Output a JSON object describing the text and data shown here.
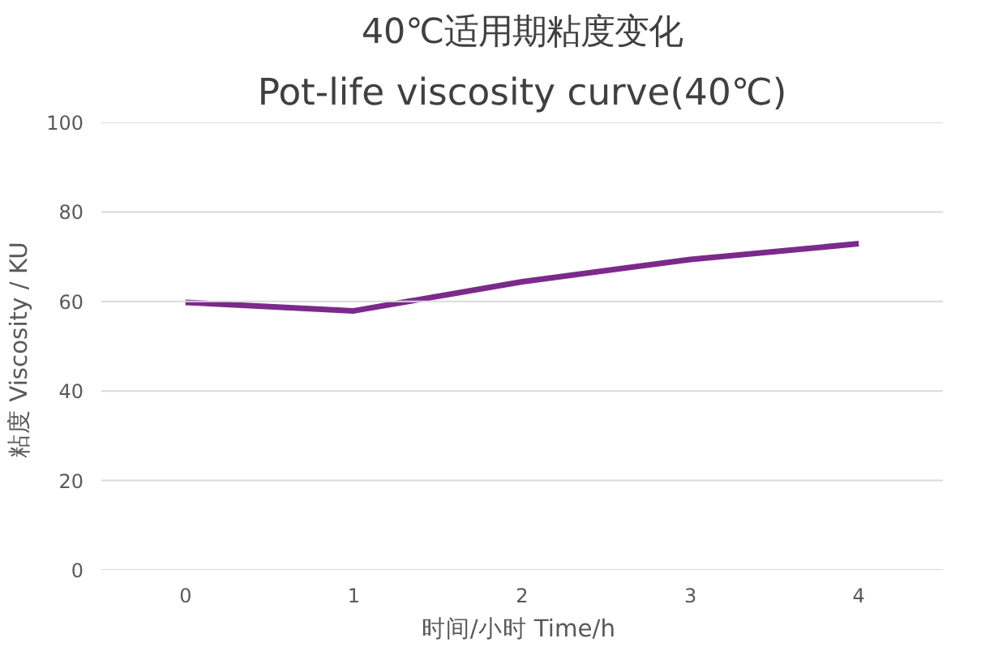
{
  "chart_data": {
    "type": "line",
    "title": "40℃适用期粘度变化",
    "subtitle": "Pot-life viscosity curve(40℃)",
    "xlabel": "时间/小时  Time/h",
    "ylabel": "粘度  Viscosity / KU",
    "categories": [
      "0",
      "1",
      "2",
      "3",
      "4"
    ],
    "series": [
      {
        "color": "#7b2a8b",
        "values": [
          59.8,
          57.9,
          64.4,
          69.4,
          72.9
        ]
      }
    ],
    "ylim": [
      0,
      100
    ],
    "yticks": [
      0,
      20,
      40,
      60,
      80,
      100
    ],
    "grid": "y",
    "marker": "none",
    "line_style": "solid"
  }
}
